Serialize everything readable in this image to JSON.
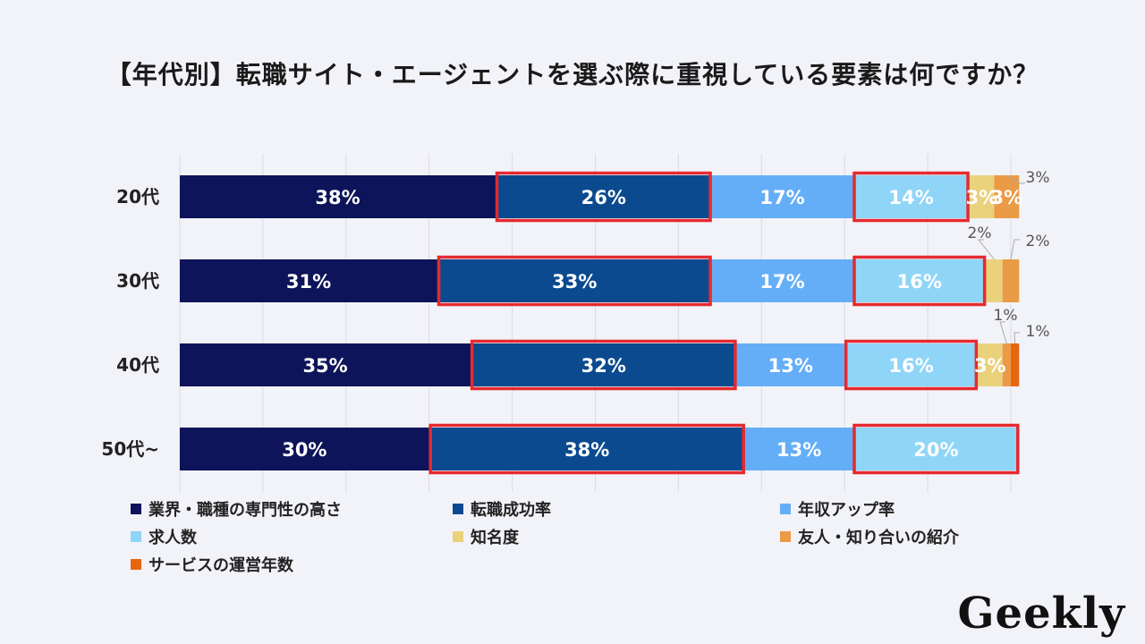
{
  "title": "【年代別】転職サイト・エージェントを選ぶ際に重視している要素は何ですか？",
  "brand": "Geekly",
  "chart_data": {
    "type": "bar",
    "orientation": "horizontal",
    "stacked": true,
    "categories": [
      "20代",
      "30代",
      "40代",
      "50代~"
    ],
    "xlim": [
      0,
      100
    ],
    "series": [
      {
        "name": "業界・職種の専門性の高さ",
        "color": "#0d1459",
        "values": [
          38,
          31,
          35,
          30
        ],
        "labels": [
          "38%",
          "31%",
          "35%",
          "30%"
        ]
      },
      {
        "name": "転職成功率",
        "color": "#0b4a8f",
        "values": [
          26,
          33,
          32,
          38
        ],
        "labels": [
          "26%",
          "33%",
          "32%",
          "38%"
        ],
        "highlighted": true
      },
      {
        "name": "年収アップ率",
        "color": "#64aef7",
        "values": [
          17,
          17,
          13,
          13
        ],
        "labels": [
          "17%",
          "17%",
          "13%",
          "13%"
        ]
      },
      {
        "name": "求人数",
        "color": "#8fd5f7",
        "values": [
          14,
          16,
          16,
          20
        ],
        "labels": [
          "14%",
          "16%",
          "16%",
          "20%"
        ],
        "highlighted": true
      },
      {
        "name": "知名度",
        "color": "#ead17c",
        "values": [
          3,
          2,
          3,
          0
        ],
        "labels": [
          "3%",
          "2%",
          "3%",
          ""
        ]
      },
      {
        "name": "友人・知り合いの紹介",
        "color": "#eb9a45",
        "values": [
          3,
          2,
          1,
          0
        ],
        "labels": [
          "3%",
          "2%",
          "1%",
          ""
        ]
      },
      {
        "name": "サービスの運営年数",
        "color": "#e8650f",
        "values": [
          0,
          0,
          1,
          0
        ],
        "labels": [
          "",
          "",
          "1%",
          ""
        ]
      }
    ],
    "callouts": [
      {
        "category": "20代",
        "series": "友人・知り合いの紹介",
        "label": "3%"
      },
      {
        "category": "30代",
        "series": "知名度",
        "label": "2%"
      },
      {
        "category": "30代",
        "series": "友人・知り合いの紹介",
        "label": "2%"
      },
      {
        "category": "40代",
        "series": "友人・知り合いの紹介",
        "label": "1%"
      },
      {
        "category": "40代",
        "series": "サービスの運営年数",
        "label": "1%"
      }
    ],
    "highlight_color": "#e52a2f",
    "grid": true
  }
}
